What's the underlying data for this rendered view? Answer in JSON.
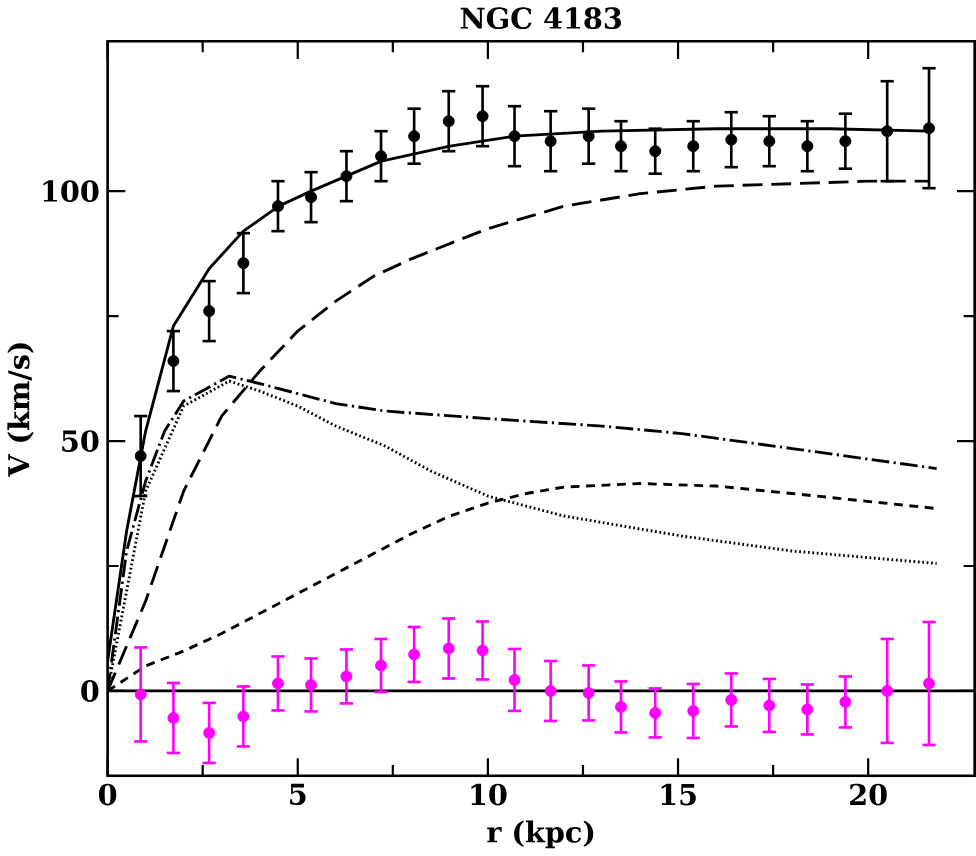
{
  "chart_data": {
    "type": "line",
    "title": "NGC 4183",
    "xlabel": "r (kpc)",
    "ylabel": "V (km/s)",
    "xlim": [
      0,
      22.8
    ],
    "ylim": [
      -17,
      130
    ],
    "xticks": [
      0,
      5,
      10,
      15,
      20
    ],
    "yticks": [
      0,
      50,
      100
    ],
    "ref_lines": [
      {
        "axis": "y",
        "value": 0,
        "color": "#000000",
        "line_style": "solid"
      }
    ],
    "series": [
      {
        "color": "#000000",
        "line_style": "solid",
        "marker": "none",
        "x": [
          0,
          0.5,
          1,
          1.73,
          2.67,
          3.57,
          4.5,
          5.35,
          7.2,
          9,
          10.7,
          13,
          16,
          19,
          21.6
        ],
        "values": [
          6,
          32,
          52,
          73,
          84.5,
          92,
          97,
          100,
          106,
          109,
          111,
          112,
          112.5,
          112.5,
          112
        ]
      },
      {
        "color": "#000000",
        "line_style": "longdashed",
        "marker": "none",
        "x": [
          0,
          1,
          2,
          3,
          4,
          5,
          6,
          7,
          8,
          9,
          10,
          12,
          14,
          16,
          18,
          20,
          21.6
        ],
        "values": [
          0,
          18,
          40,
          55,
          64,
          72,
          78,
          83,
          86.5,
          89.5,
          92.5,
          97,
          99.5,
          101,
          101.5,
          102,
          102
        ]
      },
      {
        "color": "#000000",
        "line_style": "dashdot",
        "marker": "none",
        "x": [
          0,
          0.5,
          1,
          1.5,
          2,
          3.2,
          4,
          5,
          6,
          7.3,
          10,
          13,
          15.1,
          18,
          21.8
        ],
        "values": [
          0,
          28,
          42,
          52,
          58,
          63,
          61.5,
          59.5,
          57.5,
          56,
          54.5,
          53,
          51.5,
          48.5,
          44.5
        ]
      },
      {
        "color": "#000000",
        "line_style": "dotted",
        "marker": "none",
        "x": [
          0,
          1,
          2,
          3.2,
          4,
          5,
          6,
          7.3,
          8.5,
          10,
          12,
          15.1,
          18,
          21.8
        ],
        "values": [
          0,
          40,
          57,
          62,
          60,
          57,
          53,
          49,
          44,
          39,
          35,
          31,
          28,
          25.5
        ]
      },
      {
        "color": "#000000",
        "line_style": "dashed",
        "marker": "none",
        "x": [
          0,
          1,
          2,
          3,
          4,
          5,
          6,
          7,
          8,
          9,
          10,
          11,
          12,
          14,
          16,
          18,
          21.8
        ],
        "values": [
          0,
          5,
          8,
          11.5,
          15.5,
          19.5,
          23.5,
          27.5,
          31.5,
          35,
          37.6,
          39.5,
          40.8,
          41.5,
          41,
          39.5,
          36.5
        ]
      },
      {
        "type": "scatter",
        "color": "#000000",
        "marker": "circle",
        "x": [
          0.87,
          1.73,
          2.67,
          3.57,
          4.48,
          5.35,
          6.28,
          7.19,
          8.06,
          8.97,
          9.86,
          10.7,
          11.65,
          12.65,
          13.5,
          14.4,
          15.4,
          16.4,
          17.4,
          18.4,
          19.4,
          20.5,
          21.6
        ],
        "values": [
          47,
          66,
          76,
          85.6,
          97,
          98.8,
          103,
          107,
          111,
          114,
          115,
          111,
          110,
          111,
          109,
          108,
          109,
          110.3,
          110,
          109,
          110,
          112,
          112.6
        ],
        "errors": [
          8,
          6,
          6,
          6,
          5,
          5,
          5,
          5,
          5.5,
          6,
          6,
          6,
          6,
          5.5,
          5,
          4.5,
          5,
          5.5,
          5,
          5,
          5.5,
          10,
          12
        ]
      },
      {
        "type": "scatter",
        "color": "#ff00ff",
        "marker": "circle",
        "x": [
          0.87,
          1.73,
          2.67,
          3.57,
          4.48,
          5.35,
          6.28,
          7.19,
          8.06,
          8.97,
          9.86,
          10.7,
          11.65,
          12.65,
          13.5,
          14.4,
          15.4,
          16.4,
          17.4,
          18.4,
          19.4,
          20.5,
          21.6
        ],
        "values": [
          -0.7,
          -5.4,
          -8.4,
          -5.1,
          1.5,
          1.2,
          2.9,
          5.1,
          7.3,
          8.5,
          8.1,
          2.2,
          0,
          -0.4,
          -3.2,
          -4.4,
          -4,
          -1.8,
          -2.9,
          -3.7,
          -2.2,
          0,
          1.5
        ],
        "errors": [
          9.4,
          7,
          6,
          6,
          5.4,
          5.3,
          5.4,
          5.3,
          5.5,
          6,
          5.8,
          6.2,
          6,
          5.5,
          5.1,
          4.9,
          5.4,
          5.3,
          5.3,
          5,
          5.1,
          10.4,
          12.3
        ]
      }
    ]
  }
}
